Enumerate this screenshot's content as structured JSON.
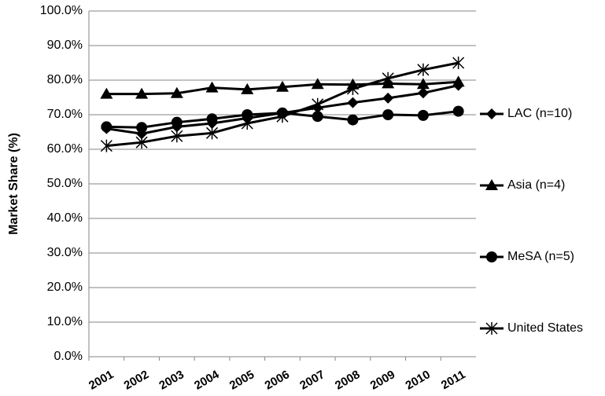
{
  "chart_data": {
    "type": "line",
    "y_label": "Market Share (%)",
    "categories": [
      "2001",
      "2002",
      "2003",
      "2004",
      "2005",
      "2006",
      "2007",
      "2008",
      "2009",
      "2010",
      "2011"
    ],
    "series": [
      {
        "name": "LAC (n=10)",
        "color": "#000000",
        "marker": "diamond",
        "values": [
          66.0,
          64.5,
          66.5,
          67.5,
          69.0,
          70.5,
          72.0,
          73.5,
          74.8,
          76.3,
          78.5
        ]
      },
      {
        "name": "Asia (n=4)",
        "color": "#000000",
        "marker": "triangle",
        "values": [
          76.0,
          76.0,
          76.2,
          77.8,
          77.3,
          78.0,
          78.8,
          78.7,
          79.0,
          78.8,
          79.5
        ]
      },
      {
        "name": "MeSA (n=5)",
        "color": "#000000",
        "marker": "circle",
        "values": [
          66.5,
          66.3,
          67.8,
          68.8,
          70.0,
          70.5,
          69.5,
          68.5,
          70.0,
          69.8,
          71.0
        ]
      },
      {
        "name": "United States",
        "color": "#000000",
        "marker": "star",
        "values": [
          61.0,
          62.0,
          63.8,
          64.7,
          67.5,
          69.5,
          73.0,
          77.5,
          80.5,
          83.0,
          85.0
        ]
      }
    ],
    "ylim": [
      0,
      100
    ],
    "yticks": [
      {
        "value": 0,
        "label": "0.0%"
      },
      {
        "value": 10,
        "label": "10.0%"
      },
      {
        "value": 20,
        "label": "20.0%"
      },
      {
        "value": 30,
        "label": "30.0%"
      },
      {
        "value": 40,
        "label": "40.0%"
      },
      {
        "value": 50,
        "label": "50.0%"
      },
      {
        "value": 60,
        "label": "60.0%"
      },
      {
        "value": 70,
        "label": "70.0%"
      },
      {
        "value": 80,
        "label": "80.0%"
      },
      {
        "value": 90,
        "label": "90.0%"
      },
      {
        "value": 100,
        "label": "100.0%"
      }
    ],
    "grid": true,
    "legend": "right"
  }
}
